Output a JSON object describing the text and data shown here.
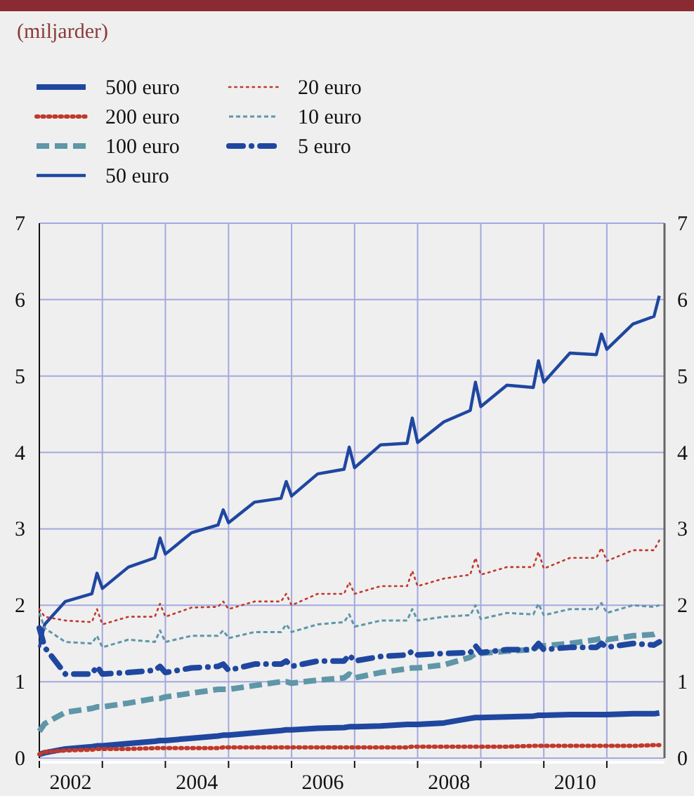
{
  "chart_data": {
    "type": "line",
    "subtitle": "(miljarder)",
    "x": [
      "2002-01",
      "2002-02",
      "2002-06",
      "2002-11",
      "2002-12",
      "2003-01",
      "2003-06",
      "2003-11",
      "2003-12",
      "2004-01",
      "2004-06",
      "2004-11",
      "2004-12",
      "2005-01",
      "2005-06",
      "2005-11",
      "2005-12",
      "2006-01",
      "2006-06",
      "2006-11",
      "2006-12",
      "2007-01",
      "2007-06",
      "2007-11",
      "2007-12",
      "2008-01",
      "2008-06",
      "2008-11",
      "2008-12",
      "2009-01",
      "2009-06",
      "2009-11",
      "2009-12",
      "2010-01",
      "2010-06",
      "2010-11",
      "2010-12",
      "2011-01",
      "2011-06",
      "2011-10",
      "2011-11"
    ],
    "series": [
      {
        "name": "500 euro",
        "color": "#1f47a0",
        "line_style": "solid",
        "values": [
          0.05,
          0.07,
          0.12,
          0.15,
          0.16,
          0.16,
          0.19,
          0.22,
          0.23,
          0.23,
          0.26,
          0.29,
          0.3,
          0.3,
          0.33,
          0.36,
          0.37,
          0.37,
          0.39,
          0.4,
          0.41,
          0.41,
          0.42,
          0.44,
          0.44,
          0.44,
          0.46,
          0.52,
          0.53,
          0.53,
          0.54,
          0.55,
          0.56,
          0.56,
          0.57,
          0.57,
          0.57,
          0.57,
          0.58,
          0.58,
          0.59
        ]
      },
      {
        "name": "200 euro",
        "color": "#c0392b",
        "line_style": "dotted",
        "values": [
          0.05,
          0.08,
          0.1,
          0.11,
          0.12,
          0.12,
          0.12,
          0.13,
          0.13,
          0.13,
          0.13,
          0.13,
          0.14,
          0.14,
          0.14,
          0.14,
          0.14,
          0.14,
          0.14,
          0.14,
          0.14,
          0.14,
          0.14,
          0.14,
          0.15,
          0.15,
          0.15,
          0.15,
          0.15,
          0.15,
          0.15,
          0.16,
          0.16,
          0.16,
          0.16,
          0.16,
          0.16,
          0.16,
          0.16,
          0.17,
          0.17
        ]
      },
      {
        "name": "100 euro",
        "color": "#5f96a8",
        "line_style": "dashed",
        "values": [
          0.35,
          0.45,
          0.6,
          0.65,
          0.67,
          0.67,
          0.72,
          0.78,
          0.78,
          0.8,
          0.85,
          0.9,
          0.9,
          0.9,
          0.95,
          1.0,
          1.0,
          0.98,
          1.02,
          1.05,
          1.1,
          1.05,
          1.12,
          1.17,
          1.18,
          1.18,
          1.22,
          1.32,
          1.37,
          1.37,
          1.4,
          1.42,
          1.47,
          1.47,
          1.5,
          1.55,
          1.57,
          1.55,
          1.6,
          1.62,
          1.65
        ]
      },
      {
        "name": "50 euro",
        "color": "#1f47a0",
        "line_style": "solid",
        "values": [
          1.45,
          1.75,
          2.05,
          2.15,
          2.42,
          2.22,
          2.5,
          2.62,
          2.88,
          2.67,
          2.95,
          3.05,
          3.25,
          3.08,
          3.35,
          3.4,
          3.62,
          3.43,
          3.72,
          3.78,
          4.07,
          3.8,
          4.1,
          4.12,
          4.45,
          4.13,
          4.4,
          4.55,
          4.92,
          4.6,
          4.88,
          4.85,
          5.2,
          4.92,
          5.3,
          5.28,
          5.55,
          5.35,
          5.68,
          5.78,
          6.05
        ]
      },
      {
        "name": "20 euro",
        "color": "#c0392b",
        "line_style": "dotted",
        "values": [
          1.95,
          1.85,
          1.8,
          1.78,
          1.95,
          1.75,
          1.85,
          1.85,
          2.02,
          1.85,
          1.97,
          1.98,
          2.05,
          1.95,
          2.05,
          2.05,
          2.15,
          2.0,
          2.15,
          2.15,
          2.3,
          2.15,
          2.25,
          2.25,
          2.45,
          2.25,
          2.35,
          2.4,
          2.62,
          2.4,
          2.5,
          2.5,
          2.7,
          2.48,
          2.62,
          2.62,
          2.75,
          2.58,
          2.72,
          2.72,
          2.85
        ]
      },
      {
        "name": "10 euro",
        "color": "#5f96a8",
        "line_style": "dashed",
        "values": [
          1.9,
          1.7,
          1.52,
          1.5,
          1.6,
          1.45,
          1.55,
          1.52,
          1.67,
          1.52,
          1.6,
          1.6,
          1.67,
          1.57,
          1.65,
          1.65,
          1.75,
          1.65,
          1.75,
          1.78,
          1.88,
          1.72,
          1.8,
          1.8,
          1.95,
          1.8,
          1.85,
          1.87,
          2.0,
          1.82,
          1.9,
          1.88,
          2.02,
          1.87,
          1.95,
          1.95,
          2.03,
          1.9,
          2.0,
          1.98,
          2.0
        ]
      },
      {
        "name": "5 euro",
        "color": "#1f47a0",
        "line_style": "dashed",
        "values": [
          1.7,
          1.45,
          1.1,
          1.1,
          1.2,
          1.1,
          1.12,
          1.15,
          1.2,
          1.12,
          1.18,
          1.2,
          1.23,
          1.15,
          1.23,
          1.23,
          1.27,
          1.2,
          1.27,
          1.27,
          1.35,
          1.27,
          1.33,
          1.35,
          1.4,
          1.35,
          1.37,
          1.38,
          1.47,
          1.38,
          1.42,
          1.42,
          1.5,
          1.42,
          1.45,
          1.45,
          1.5,
          1.45,
          1.5,
          1.48,
          1.52
        ]
      }
    ],
    "xlim": [
      "2002-01",
      "2011-12"
    ],
    "xticks": [
      {
        "value": "2003-01",
        "label": null
      },
      {
        "value": "2004-01",
        "label": null
      },
      {
        "value": "2005-01",
        "label": null
      },
      {
        "value": "2006-01",
        "label": null
      },
      {
        "value": "2007-01",
        "label": null
      },
      {
        "value": "2008-01",
        "label": null
      },
      {
        "value": "2009-01",
        "label": null
      },
      {
        "value": "2010-01",
        "label": null
      },
      {
        "value": "2011-01",
        "label": null
      },
      {
        "value": "2002-07",
        "label": "2002"
      },
      {
        "value": "2004-07",
        "label": "2004"
      },
      {
        "value": "2006-07",
        "label": "2006"
      },
      {
        "value": "2008-07",
        "label": "2008"
      },
      {
        "value": "2010-07",
        "label": "2010"
      }
    ],
    "ylim": [
      0,
      7
    ],
    "yticks": [
      0,
      1,
      2,
      3,
      4,
      5,
      6,
      7
    ],
    "y2lim": [
      0,
      7
    ],
    "y2ticks": [
      0,
      1,
      2,
      3,
      4,
      5,
      6,
      7
    ],
    "grid": true,
    "legend": "top left"
  }
}
